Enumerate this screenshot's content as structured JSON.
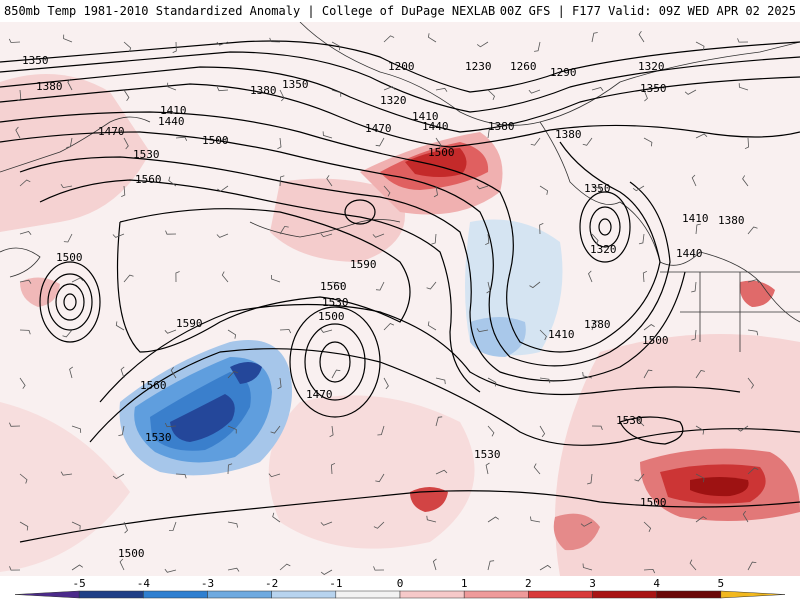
{
  "header": {
    "title_left": "850mb Temp 1981-2010 Standardized Anomaly | College of DuPage NEXLAB",
    "title_right": "00Z GFS | F177 Valid: 09Z WED APR 02 2025"
  },
  "colorbar": {
    "ticks": [
      "-5",
      "-4",
      "-3",
      "-2",
      "-1",
      "0",
      "1",
      "2",
      "3",
      "4",
      "5"
    ],
    "colors": [
      "#4b2a8a",
      "#1f3f86",
      "#2f7fd0",
      "#6faae0",
      "#b7d3ee",
      "#f2f2f2",
      "#f6c9c9",
      "#ee9a9a",
      "#d83a3a",
      "#a81414",
      "#6a0808",
      "#f2b81e"
    ]
  },
  "contour_labels": [
    {
      "id": "l1350a",
      "text": "1350"
    },
    {
      "id": "l1380a",
      "text": "1380"
    },
    {
      "id": "l1200",
      "text": "1200"
    },
    {
      "id": "l1230",
      "text": "1230"
    },
    {
      "id": "l1260",
      "text": "1260"
    },
    {
      "id": "l1290",
      "text": "1290"
    },
    {
      "id": "l1320a",
      "text": "1320"
    },
    {
      "id": "l1350b",
      "text": "1350"
    },
    {
      "id": "l1380b",
      "text": "1380"
    },
    {
      "id": "l1350c",
      "text": "1350"
    },
    {
      "id": "l1320b",
      "text": "1320"
    },
    {
      "id": "l1410a",
      "text": "1410"
    },
    {
      "id": "l1440a",
      "text": "1440"
    },
    {
      "id": "l1470a",
      "text": "1470"
    },
    {
      "id": "l1500a",
      "text": "1500"
    },
    {
      "id": "l1410b",
      "text": "1410"
    },
    {
      "id": "l1440b",
      "text": "1440"
    },
    {
      "id": "l1470b",
      "text": "1470"
    },
    {
      "id": "l1380c",
      "text": "1380"
    },
    {
      "id": "l1500b",
      "text": "1500"
    },
    {
      "id": "l1380d",
      "text": "1380"
    },
    {
      "id": "l1530a",
      "text": "1530"
    },
    {
      "id": "l1560a",
      "text": "1560"
    },
    {
      "id": "l1350d",
      "text": "1350"
    },
    {
      "id": "l1320c",
      "text": "1320"
    },
    {
      "id": "l1410c",
      "text": "1410"
    },
    {
      "id": "l1380e",
      "text": "1380"
    },
    {
      "id": "l1440c",
      "text": "1440"
    },
    {
      "id": "l1500c",
      "text": "1500"
    },
    {
      "id": "l1590a",
      "text": "1590"
    },
    {
      "id": "l1590b",
      "text": "1590"
    },
    {
      "id": "l1560b",
      "text": "1560"
    },
    {
      "id": "l1530b",
      "text": "1530"
    },
    {
      "id": "l1500d",
      "text": "1500"
    },
    {
      "id": "l1410d",
      "text": "1410"
    },
    {
      "id": "l1380f",
      "text": "1380"
    },
    {
      "id": "l1500e",
      "text": "1500"
    },
    {
      "id": "l1560c",
      "text": "1560"
    },
    {
      "id": "l1470c",
      "text": "1470"
    },
    {
      "id": "l1530c",
      "text": "1530"
    },
    {
      "id": "l1530d",
      "text": "1530"
    },
    {
      "id": "l1530e",
      "text": "1530"
    },
    {
      "id": "l1500f",
      "text": "1500"
    },
    {
      "id": "l1500g",
      "text": "1500"
    }
  ]
}
